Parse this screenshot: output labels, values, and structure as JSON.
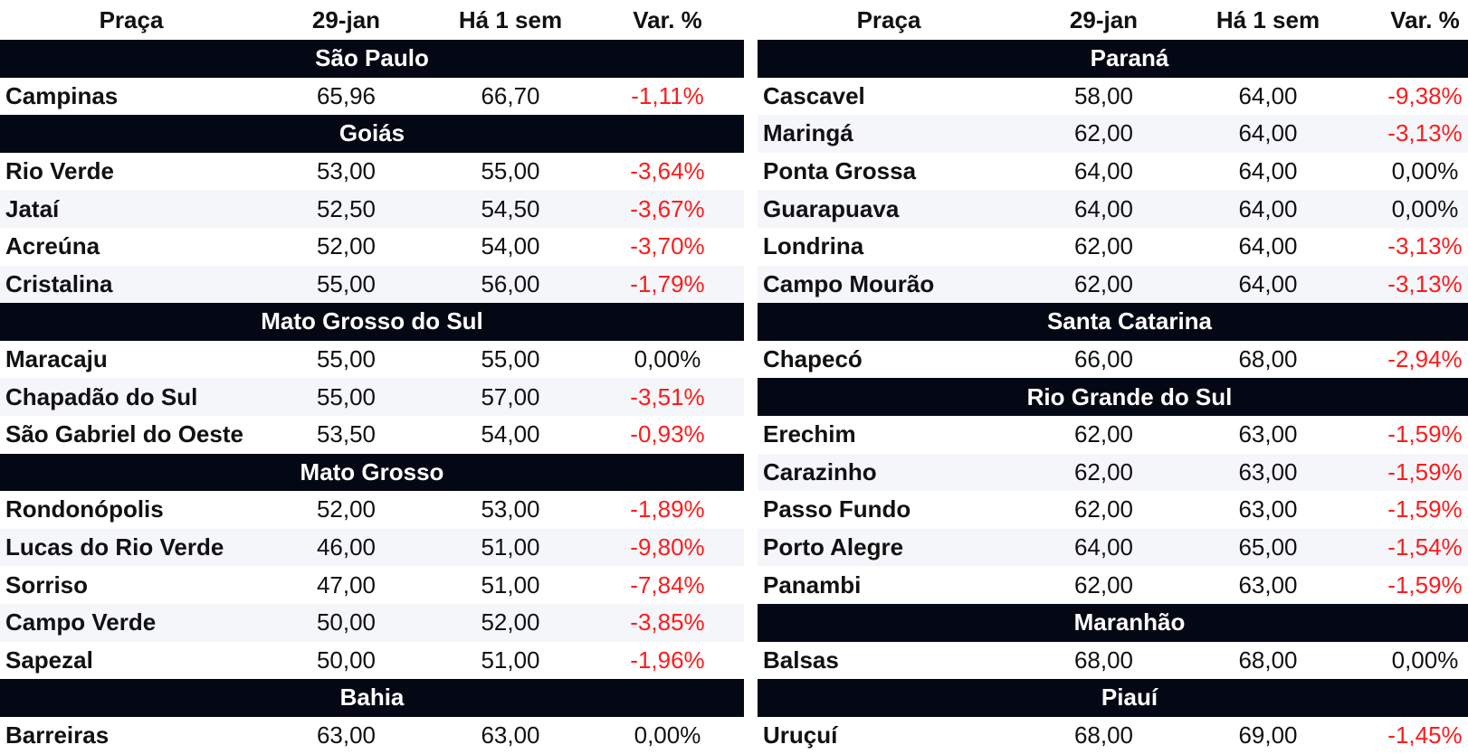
{
  "headers": {
    "praca": "Praça",
    "date": "29-jan",
    "prev": "Há 1 sem",
    "var": "Var. %"
  },
  "left": [
    {
      "state": "São Paulo",
      "rows": [
        {
          "name": "Campinas",
          "date": "65,96",
          "prev": "66,70",
          "var": "-1,11%",
          "trend": "neg"
        }
      ]
    },
    {
      "state": "Goiás",
      "rows": [
        {
          "name": "Rio Verde",
          "date": "53,00",
          "prev": "55,00",
          "var": "-3,64%",
          "trend": "neg"
        },
        {
          "name": "Jataí",
          "date": "52,50",
          "prev": "54,50",
          "var": "-3,67%",
          "trend": "neg"
        },
        {
          "name": "Acreúna",
          "date": "52,00",
          "prev": "54,00",
          "var": "-3,70%",
          "trend": "neg"
        },
        {
          "name": "Cristalina",
          "date": "55,00",
          "prev": "56,00",
          "var": "-1,79%",
          "trend": "neg"
        }
      ]
    },
    {
      "state": "Mato Grosso do Sul",
      "rows": [
        {
          "name": "Maracaju",
          "date": "55,00",
          "prev": "55,00",
          "var": "0,00%",
          "trend": "zero"
        },
        {
          "name": "Chapadão do Sul",
          "date": "55,00",
          "prev": "57,00",
          "var": "-3,51%",
          "trend": "neg"
        },
        {
          "name": "São Gabriel do Oeste",
          "date": "53,50",
          "prev": "54,00",
          "var": "-0,93%",
          "trend": "neg"
        }
      ]
    },
    {
      "state": "Mato Grosso",
      "rows": [
        {
          "name": "Rondonópolis",
          "date": "52,00",
          "prev": "53,00",
          "var": "-1,89%",
          "trend": "neg"
        },
        {
          "name": "Lucas do Rio Verde",
          "date": "46,00",
          "prev": "51,00",
          "var": "-9,80%",
          "trend": "neg"
        },
        {
          "name": "Sorriso",
          "date": "47,00",
          "prev": "51,00",
          "var": "-7,84%",
          "trend": "neg"
        },
        {
          "name": "Campo Verde",
          "date": "50,00",
          "prev": "52,00",
          "var": "-3,85%",
          "trend": "neg"
        },
        {
          "name": "Sapezal",
          "date": "50,00",
          "prev": "51,00",
          "var": "-1,96%",
          "trend": "neg"
        }
      ]
    },
    {
      "state": "Bahia",
      "rows": [
        {
          "name": "Barreiras",
          "date": "63,00",
          "prev": "63,00",
          "var": "0,00%",
          "trend": "zero"
        }
      ]
    }
  ],
  "right": [
    {
      "state": "Paraná",
      "rows": [
        {
          "name": "Cascavel",
          "date": "58,00",
          "prev": "64,00",
          "var": "-9,38%",
          "trend": "neg"
        },
        {
          "name": "Maringá",
          "date": "62,00",
          "prev": "64,00",
          "var": "-3,13%",
          "trend": "neg"
        },
        {
          "name": "Ponta Grossa",
          "date": "64,00",
          "prev": "64,00",
          "var": "0,00%",
          "trend": "zero"
        },
        {
          "name": "Guarapuava",
          "date": "64,00",
          "prev": "64,00",
          "var": "0,00%",
          "trend": "zero"
        },
        {
          "name": "Londrina",
          "date": "62,00",
          "prev": "64,00",
          "var": "-3,13%",
          "trend": "neg"
        },
        {
          "name": "Campo Mourão",
          "date": "62,00",
          "prev": "64,00",
          "var": "-3,13%",
          "trend": "neg"
        }
      ]
    },
    {
      "state": "Santa Catarina",
      "rows": [
        {
          "name": "Chapecó",
          "date": "66,00",
          "prev": "68,00",
          "var": "-2,94%",
          "trend": "neg"
        }
      ]
    },
    {
      "state": "Rio Grande do Sul",
      "rows": [
        {
          "name": "Erechim",
          "date": "62,00",
          "prev": "63,00",
          "var": "-1,59%",
          "trend": "neg"
        },
        {
          "name": "Carazinho",
          "date": "62,00",
          "prev": "63,00",
          "var": "-1,59%",
          "trend": "neg"
        },
        {
          "name": "Passo Fundo",
          "date": "62,00",
          "prev": "63,00",
          "var": "-1,59%",
          "trend": "neg"
        },
        {
          "name": "Porto Alegre",
          "date": "64,00",
          "prev": "65,00",
          "var": "-1,54%",
          "trend": "neg"
        },
        {
          "name": "Panambi",
          "date": "62,00",
          "prev": "63,00",
          "var": "-1,59%",
          "trend": "neg"
        }
      ]
    },
    {
      "state": "Maranhão",
      "rows": [
        {
          "name": "Balsas",
          "date": "68,00",
          "prev": "68,00",
          "var": "0,00%",
          "trend": "zero"
        }
      ]
    },
    {
      "state": "Piauí",
      "rows": [
        {
          "name": "Uruçuí",
          "date": "68,00",
          "prev": "69,00",
          "var": "-1,45%",
          "trend": "neg"
        }
      ]
    }
  ],
  "colors": {
    "state_band": "#040814",
    "negative": "#ff1a1a",
    "row_alt": "#f5f6fa"
  }
}
